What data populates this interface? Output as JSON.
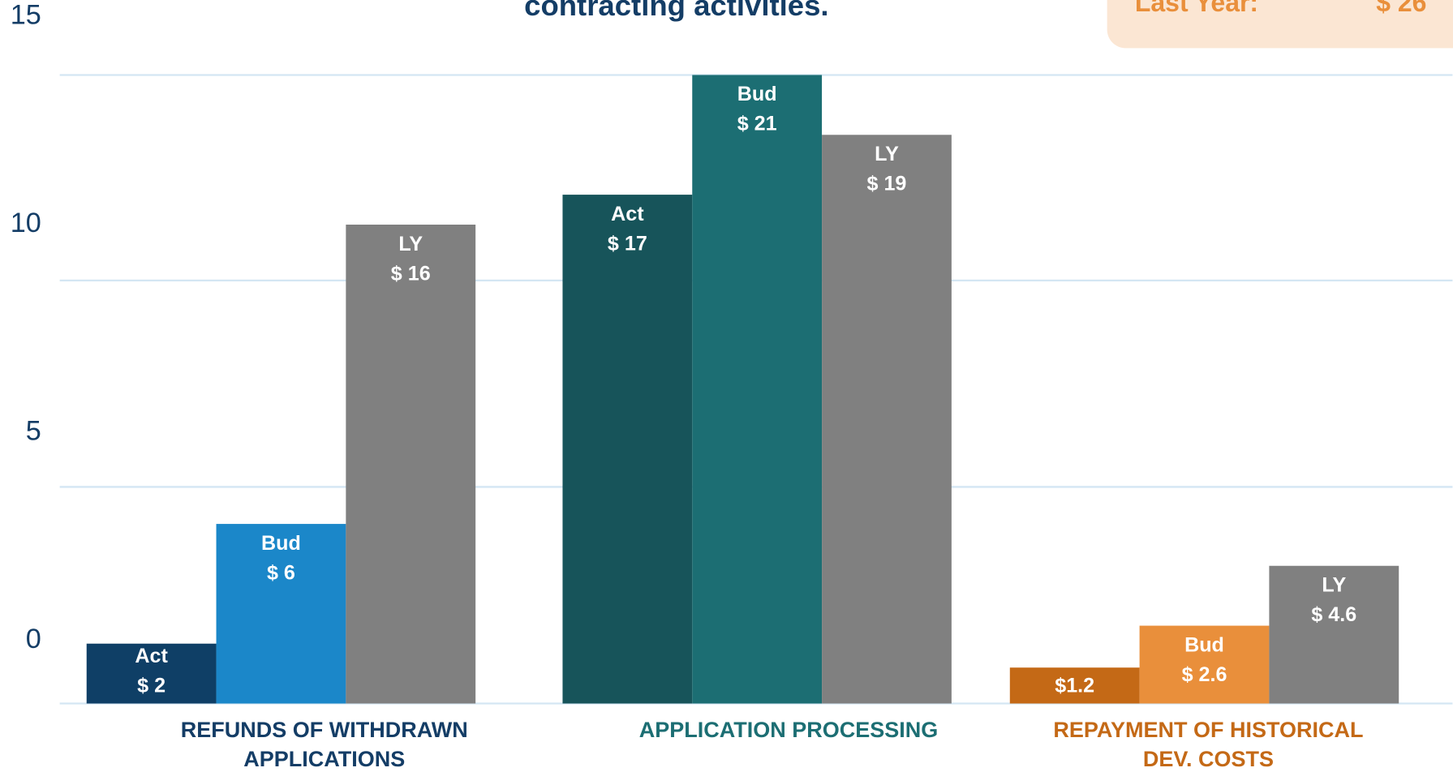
{
  "chart_data": {
    "type": "bar",
    "title": "contracting activities.",
    "summary": {
      "label": "Last Year:",
      "value": "$ 26"
    },
    "categories": [
      "REFUNDS OF WITHDRAWN APPLICATIONS",
      "APPLICATION PROCESSING",
      "REPAYMENT OF HISTORICAL DEV. COSTS"
    ],
    "category_colors": [
      "#143d66",
      "#1c6e73",
      "#c46916"
    ],
    "series": [
      {
        "name": "Act",
        "colors": [
          "#0f3f66",
          "#17545a",
          "#c46916"
        ],
        "values": [
          2,
          17,
          1.2
        ],
        "value_labels": [
          "$ 2",
          "$ 17",
          "$1.2"
        ]
      },
      {
        "name": "Bud",
        "colors": [
          "#1b87c9",
          "#1c6e73",
          "#e98f3b"
        ],
        "values": [
          6,
          21,
          2.6
        ],
        "value_labels": [
          "$ 6",
          "$ 21",
          "$ 2.6"
        ]
      },
      {
        "name": "LY",
        "colors": [
          "#808080",
          "#808080",
          "#808080"
        ],
        "values": [
          16,
          19,
          4.6
        ],
        "value_labels": [
          "$ 16",
          "$ 19",
          "$ 4.6"
        ]
      }
    ],
    "ylim": [
      0,
      15
    ],
    "yticks": [
      0,
      5,
      10,
      15
    ]
  }
}
